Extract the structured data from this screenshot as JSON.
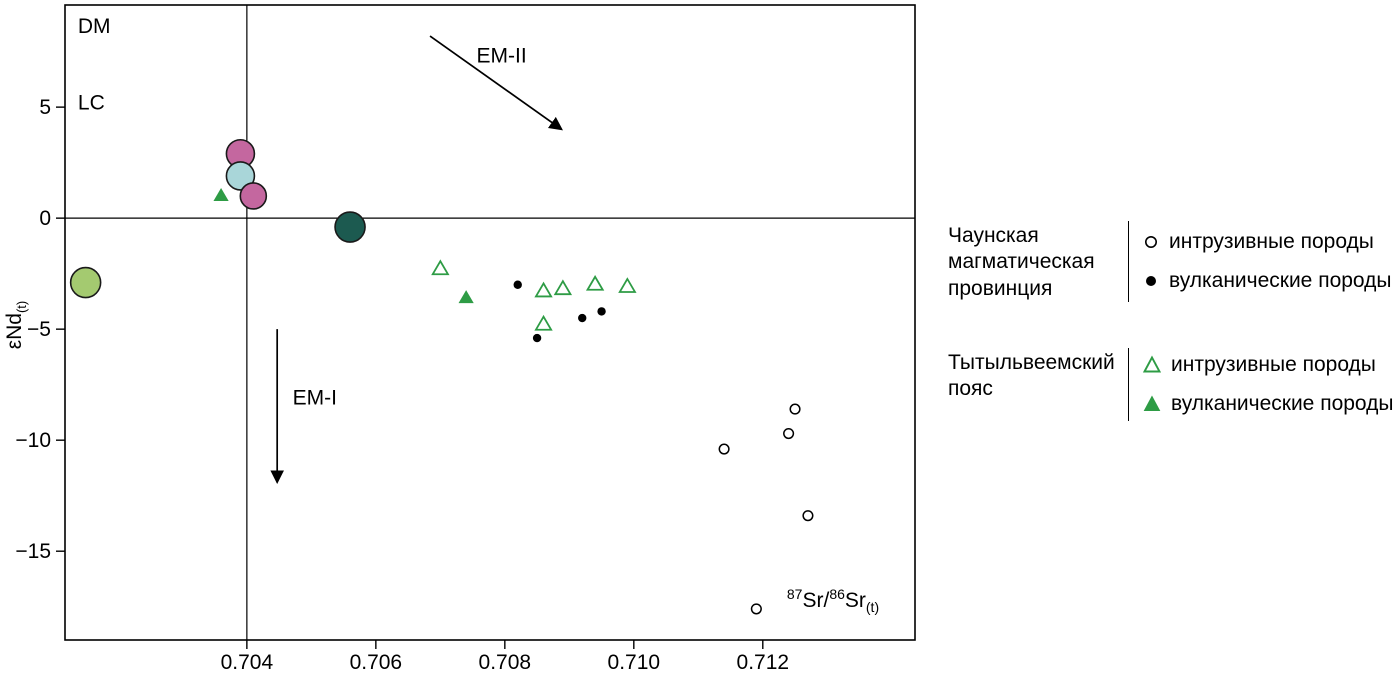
{
  "chart_data": {
    "type": "scatter",
    "title": "",
    "xlabel_parts": {
      "sup_a": "87",
      "text_a": "Sr/",
      "sup_b": "86",
      "text_b": "Sr",
      "sub": "(t)"
    },
    "ylabel_parts": {
      "text": "εNd",
      "sub": "(t)"
    },
    "xlim": [
      0.70118,
      0.71436
    ],
    "ylim": [
      -19.0,
      9.6
    ],
    "x_ticks": [
      0.704,
      0.706,
      0.708,
      0.71,
      0.712
    ],
    "x_tick_labels": [
      "0.704",
      "0.706",
      "0.708",
      "0.710",
      "0.712"
    ],
    "y_ticks": [
      5,
      0,
      -5,
      -10,
      -15
    ],
    "y_tick_labels": [
      "5",
      "0",
      "−5",
      "−10",
      "−15"
    ],
    "grid": false,
    "legend_position": "right-outside",
    "reference_lines": {
      "vertical_x": 0.704,
      "horizontal_y": 0
    },
    "corner_labels": [
      {
        "text": "DM",
        "x": 0.70138,
        "y": 8.35
      },
      {
        "text": "LC",
        "x": 0.70138,
        "y": 4.9
      }
    ],
    "arrows": [
      {
        "label": "EM-II",
        "x1": 0.70684,
        "y1": 8.2,
        "x2": 0.70888,
        "y2": 4.0,
        "label_x": 0.70795,
        "label_y": 7.0,
        "label_anchor": "middle"
      },
      {
        "label": "EM-I",
        "x1": 0.70447,
        "y1": -5.0,
        "x2": 0.70447,
        "y2": -11.9,
        "label_x": 0.70471,
        "label_y": -8.4,
        "label_anchor": "start"
      }
    ],
    "series": [
      {
        "name": "Чаунская магматическая провинция — интрузивные породы",
        "marker": "open-circle",
        "color": "#000000",
        "points": [
          [
            0.7114,
            -10.4
          ],
          [
            0.7124,
            -9.7
          ],
          [
            0.7125,
            -8.6
          ],
          [
            0.7127,
            -13.4
          ],
          [
            0.7119,
            -17.6
          ]
        ]
      },
      {
        "name": "Чаунская магматическая провинция — вулканические породы",
        "marker": "filled-circle",
        "color": "#000000",
        "points": [
          [
            0.7082,
            -3.0
          ],
          [
            0.7092,
            -4.5
          ],
          [
            0.7095,
            -4.2
          ],
          [
            0.7085,
            -5.4
          ]
        ]
      },
      {
        "name": "Тытыльвеемский пояс — интрузивные породы",
        "marker": "open-triangle",
        "color": "#2e9c45",
        "points": [
          [
            0.707,
            -2.3
          ],
          [
            0.7086,
            -3.3
          ],
          [
            0.7089,
            -3.2
          ],
          [
            0.7094,
            -3.0
          ],
          [
            0.7099,
            -3.1
          ],
          [
            0.7086,
            -4.8
          ]
        ]
      },
      {
        "name": "Тытыльвеемский пояс — вулканические породы",
        "marker": "filled-triangle",
        "color": "#2e9c45",
        "points": [
          [
            0.7036,
            1.0
          ],
          [
            0.7074,
            -3.6
          ]
        ]
      }
    ],
    "highlight_circles": [
      {
        "x": 0.7039,
        "y": 2.9,
        "r": 14,
        "fill": "#c4679f"
      },
      {
        "x": 0.7039,
        "y": 1.9,
        "r": 14,
        "fill": "#a9d6d9"
      },
      {
        "x": 0.7041,
        "y": 1.0,
        "r": 13,
        "fill": "#c4679f"
      },
      {
        "x": 0.7056,
        "y": -0.4,
        "r": 15,
        "fill": "#1c5a50"
      },
      {
        "x": 0.7015,
        "y": -2.9,
        "r": 15,
        "fill": "#a4ca70"
      }
    ]
  },
  "legend": {
    "groups": [
      {
        "name": "Чаунская магматическая провинция",
        "items": [
          {
            "symbol": "open-circle",
            "label": "интрузивные породы"
          },
          {
            "symbol": "filled-circle",
            "label": "вулканические породы"
          }
        ]
      },
      {
        "name": "Тытыльвеемский пояс",
        "items": [
          {
            "symbol": "open-triangle",
            "label": "интрузивные породы"
          },
          {
            "symbol": "filled-triangle",
            "label": "вулканические породы"
          }
        ]
      }
    ]
  },
  "colors": {
    "green": "#2e9c45",
    "axis": "#000000",
    "pink": "#c4679f",
    "light_blue": "#a9d6d9",
    "dark_teal": "#1c5a50",
    "light_green": "#a4ca70"
  }
}
